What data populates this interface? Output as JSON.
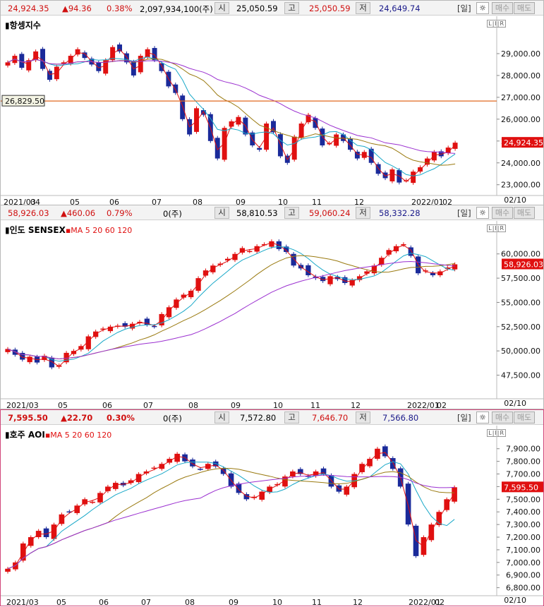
{
  "panels": [
    {
      "header": {
        "price": "24,924.35",
        "change": "▲94.36",
        "pct": "0.38%",
        "volume": "2,097,934,100(주)",
        "open_label": "시",
        "open": "25,050.59",
        "high_label": "고",
        "high": "25,050.59",
        "low_label": "저",
        "low": "24,649.74",
        "period": "[일]",
        "cog": "☼",
        "buy": "매수",
        "sell": "매도"
      },
      "title": "항셍지수",
      "ma_legend": null,
      "lir": "L|I|R",
      "date_end": "02/10",
      "current_label": "24,924.35",
      "hline_label": "26,829.50",
      "chart_data": {
        "type": "candlestick",
        "title": "항셍지수",
        "y_ticks": [
          29000,
          28000,
          27000,
          26000,
          25000,
          24000,
          23000
        ],
        "y_tick_labels": [
          "29,000.00",
          "28,000.00",
          "27,000.00",
          "26,000.00",
          "25,000.00",
          "24,000.00",
          "23,000.00"
        ],
        "x_tick_labels": [
          "2021/03",
          "04",
          "05",
          "06",
          "07",
          "08",
          "09",
          "10",
          "11",
          "12",
          "2022/01",
          "02"
        ],
        "ylim": [
          22700,
          30000
        ],
        "hline": 26829.5,
        "close": [
          28600,
          28900,
          28350,
          28700,
          29100,
          28300,
          27800,
          28400,
          28600,
          28900,
          29200,
          28800,
          28500,
          28200,
          28700,
          29300,
          29100,
          28600,
          28000,
          28900,
          29200,
          28700,
          28200,
          27500,
          27200,
          26000,
          25300,
          26500,
          26200,
          25000,
          24200,
          25600,
          25900,
          26100,
          25300,
          24800,
          24600,
          25800,
          25400,
          24300,
          24000,
          25200,
          25800,
          26200,
          25600,
          24800,
          24900,
          25300,
          25000,
          24600,
          24200,
          24500,
          24000,
          23500,
          23300,
          23700,
          23100,
          23200,
          23600,
          23800,
          24200,
          24500,
          24300,
          24700,
          24924
        ]
      },
      "series_colors": {
        "ma5": "#e01010",
        "ma20": "#18a8c8",
        "ma60": "#9a7a10",
        "ma120": "#9b30d0"
      }
    },
    {
      "header": {
        "price": "58,926.03",
        "change": "▲460.06",
        "pct": "0.79%",
        "volume": "0(주)",
        "open_label": "시",
        "open": "58,810.53",
        "high_label": "고",
        "high": "59,060.24",
        "low_label": "저",
        "low": "58,332.28",
        "period": "[일]",
        "cog": "☼",
        "buy": "매수",
        "sell": "매도"
      },
      "title": "인도 SENSEX",
      "ma_legend": "▪MA 5  20  60  120",
      "lir": "L|I|R",
      "date_end": "02/10",
      "current_label": "58,926.03",
      "chart_data": {
        "type": "candlestick",
        "title": "인도 SENSEX",
        "y_ticks": [
          60000,
          57500,
          55000,
          52500,
          50000,
          47500
        ],
        "y_tick_labels": [
          "60,000.00",
          "57,500.00",
          "55,000.00",
          "52,500.00",
          "50,000.00",
          "47,500.00"
        ],
        "x_tick_labels": [
          "2021/03",
          "05",
          "06",
          "07",
          "08",
          "09",
          "10",
          "11",
          "12",
          "2022/01",
          "02"
        ],
        "ylim": [
          45500,
          61800
        ],
        "close": [
          50200,
          49600,
          49100,
          49400,
          48800,
          49500,
          48300,
          48500,
          49800,
          50000,
          50500,
          51500,
          52000,
          52300,
          52500,
          52600,
          52500,
          52800,
          53000,
          52700,
          52500,
          53800,
          54500,
          55300,
          55800,
          56200,
          57500,
          58300,
          58800,
          59000,
          59500,
          60000,
          60600,
          60300,
          60800,
          61000,
          61300,
          60500,
          60200,
          58800,
          58500,
          57800,
          57500,
          57200,
          57700,
          57400,
          57000,
          57300,
          57700,
          58200,
          58800,
          59600,
          60400,
          60800,
          61000,
          59800,
          58000,
          58300,
          57800,
          58200,
          58600,
          58926
        ]
      },
      "series_colors": {
        "ma5": "#e01010",
        "ma20": "#18a8c8",
        "ma60": "#9a7a10",
        "ma120": "#9b30d0"
      }
    },
    {
      "header": {
        "price": "7,595.50",
        "change": "▲22.70",
        "pct": "0.30%",
        "volume": "0(주)",
        "open_label": "시",
        "open": "7,572.80",
        "high_label": "고",
        "high": "7,646.70",
        "low_label": "저",
        "low": "7,566.80",
        "period": "[일]",
        "cog": "☼",
        "buy": "매수",
        "sell": "매도"
      },
      "title": "호주 AOI",
      "ma_legend": "▪MA 5  20  60  120",
      "lir": "L|I|R",
      "date_end": "02/10",
      "current_label": "7,595.50",
      "chart_data": {
        "type": "candlestick",
        "title": "호주 AOI",
        "y_ticks": [
          7900,
          7800,
          7700,
          7600,
          7500,
          7400,
          7300,
          7200,
          7100,
          7000,
          6900,
          6800
        ],
        "y_tick_labels": [
          "7,900.00",
          "7,800.00",
          "7,700.00",
          "7,600.00",
          "7,500.00",
          "7,400.00",
          "7,300.00",
          "7,200.00",
          "7,100.00",
          "7,000.00",
          "6,900.00",
          "6,800.00"
        ],
        "x_tick_labels": [
          "2021/03",
          "05",
          "06",
          "07",
          "08",
          "09",
          "10",
          "11",
          "12",
          "2022/01",
          "02"
        ],
        "ylim": [
          6770,
          7960
        ],
        "close": [
          6950,
          7000,
          7150,
          7200,
          7250,
          7200,
          7300,
          7380,
          7400,
          7450,
          7500,
          7480,
          7550,
          7600,
          7630,
          7610,
          7650,
          7700,
          7720,
          7750,
          7780,
          7820,
          7860,
          7800,
          7760,
          7740,
          7780,
          7760,
          7700,
          7600,
          7550,
          7500,
          7520,
          7560,
          7600,
          7620,
          7680,
          7720,
          7700,
          7680,
          7720,
          7700,
          7600,
          7560,
          7600,
          7700,
          7780,
          7820,
          7900,
          7840,
          7740,
          7600,
          7300,
          7050,
          7200,
          7300,
          7400,
          7500,
          7595
        ]
      },
      "series_colors": {
        "ma5": "#e01010",
        "ma20": "#18a8c8",
        "ma60": "#9a7a10",
        "ma120": "#9b30d0"
      }
    }
  ]
}
